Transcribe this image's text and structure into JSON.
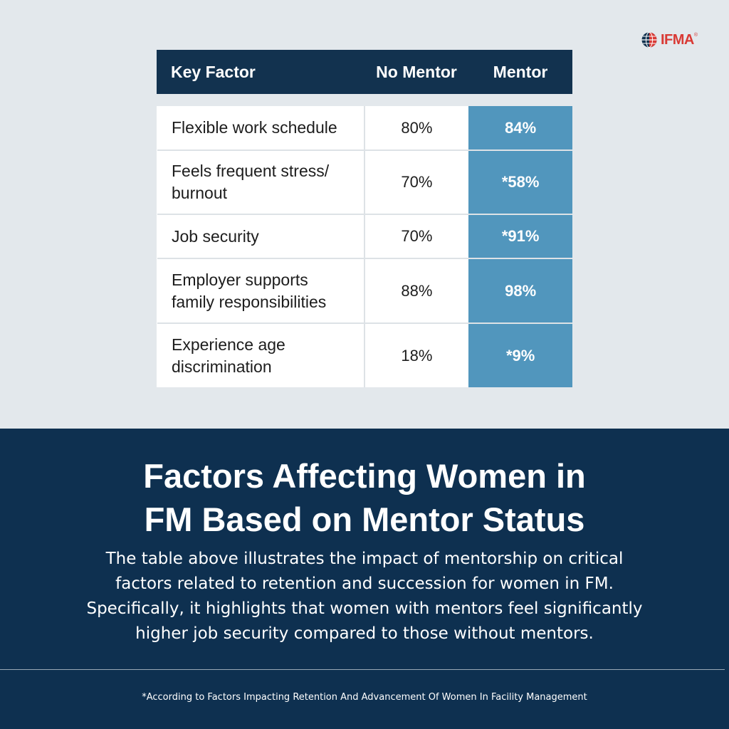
{
  "brand": {
    "logo_text": "IFMA",
    "trademark": "®",
    "logo_color": "#d93a35"
  },
  "table": {
    "headers": [
      "Key Factor",
      "No Mentor",
      "Mentor"
    ],
    "rows": [
      {
        "factor": [
          "Flexible work schedule"
        ],
        "no_mentor": "80%",
        "mentor": "84%"
      },
      {
        "factor": [
          "Feels frequent stress/",
          "burnout"
        ],
        "no_mentor": "70%",
        "mentor": "*58%"
      },
      {
        "factor": [
          "Job security"
        ],
        "no_mentor": "70%",
        "mentor": "*91%"
      },
      {
        "factor": [
          "Employer supports",
          "family responsibilities"
        ],
        "no_mentor": "88%",
        "mentor": "98%"
      },
      {
        "factor": [
          "Experience age",
          "discrimination"
        ],
        "no_mentor": "18%",
        "mentor": "*9%"
      }
    ],
    "colors": {
      "header_bg": "#12324f",
      "mentor_bg": "#5196bd"
    }
  },
  "title_lines": [
    "Factors Affecting Women in",
    "FM Based on Mentor Status"
  ],
  "description_lines": [
    "The table above illustrates the impact of mentorship on critical",
    "factors related to retention and succession for women in FM.",
    "Specifically, it highlights that women with mentors feel significantly",
    "higher job security compared to those without mentors."
  ],
  "footnote": "*According to Factors Impacting Retention And Advancement Of Women In Facility Management",
  "colors": {
    "top_bg": "#e3e8ec",
    "bottom_bg": "#0e3050"
  }
}
